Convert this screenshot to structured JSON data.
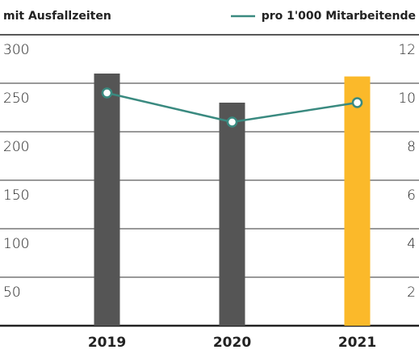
{
  "chart_data": {
    "type": "bar",
    "title": "mit Ausfallzeiten",
    "categories": [
      "2019",
      "2020",
      "2021"
    ],
    "series": [
      {
        "name": "mit Ausfallzeiten",
        "type": "bar",
        "colors": [
          "#555555",
          "#555555",
          "#fbb92a"
        ],
        "values": [
          260,
          230,
          257
        ]
      },
      {
        "name": "pro 1'000 Mitarbeitende",
        "type": "line",
        "axis": "y2",
        "color": "#3a8a80",
        "values": [
          9.6,
          8.4,
          9.2
        ]
      }
    ],
    "ylim": [
      0,
      300
    ],
    "yticks": [
      50,
      100,
      150,
      200,
      250,
      300
    ],
    "y2lim": [
      0,
      12
    ],
    "y2ticks": [
      2,
      4,
      6,
      8,
      10,
      12
    ],
    "grid": true,
    "legend": "top-right"
  }
}
